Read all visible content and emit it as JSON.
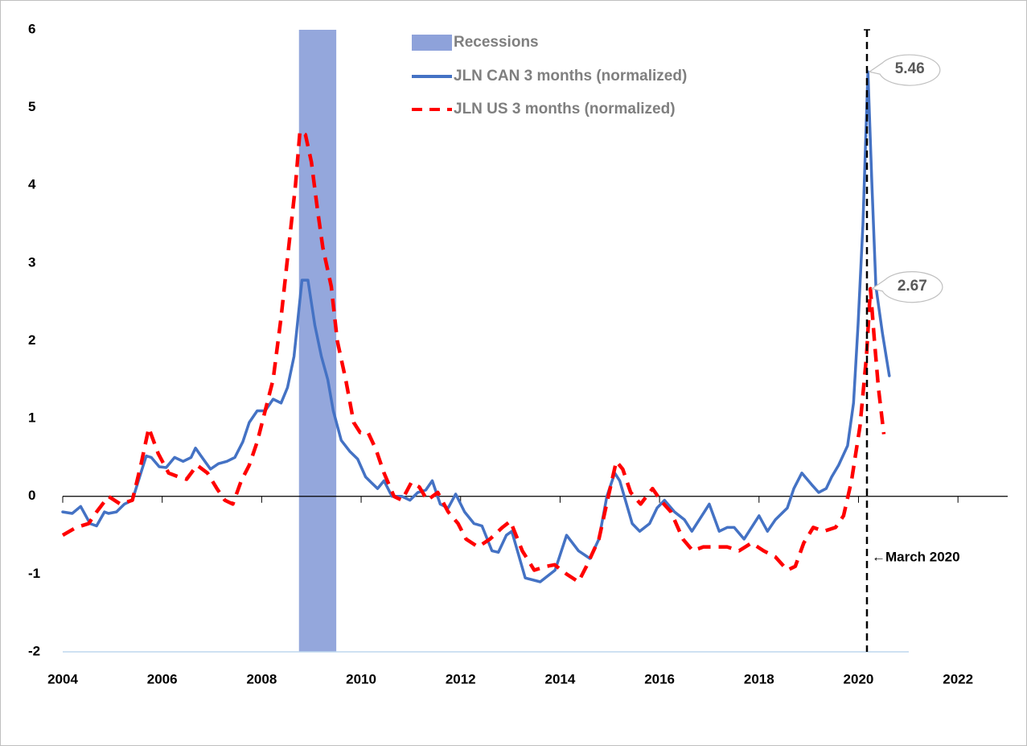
{
  "chart_data": {
    "type": "line",
    "xlim": [
      2004,
      2023
    ],
    "xticks": [
      2004,
      2006,
      2008,
      2010,
      2012,
      2014,
      2016,
      2018,
      2020,
      2022
    ],
    "ylim": [
      -2,
      6
    ],
    "yticks": [
      -2,
      -1,
      0,
      1,
      2,
      3,
      4,
      5,
      6
    ],
    "recessions": {
      "name": "Recessions",
      "color": "#8ea2da",
      "start": 2008.75,
      "end": 2009.5
    },
    "series": [
      {
        "name": "JLN CAN 3 months (normalized)",
        "color": "#4472c4",
        "dash": false,
        "x": [
          2004.0,
          2004.19,
          2004.36,
          2004.55,
          2004.68,
          2004.84,
          2004.92,
          2005.08,
          2005.24,
          2005.4,
          2005.57,
          2005.68,
          2005.78,
          2005.94,
          2006.08,
          2006.25,
          2006.42,
          2006.58,
          2006.67,
          2006.78,
          2006.97,
          2007.13,
          2007.3,
          2007.46,
          2007.62,
          2007.75,
          2007.91,
          2008.07,
          2008.23,
          2008.39,
          2008.52,
          2008.65,
          2008.81,
          2008.93,
          2009.07,
          2009.2,
          2009.33,
          2009.44,
          2009.6,
          2009.77,
          2009.93,
          2010.09,
          2010.2,
          2010.33,
          2010.46,
          2010.62,
          2010.82,
          2010.98,
          2011.14,
          2011.3,
          2011.43,
          2011.59,
          2011.75,
          2011.9,
          2012.08,
          2012.27,
          2012.43,
          2012.63,
          2012.76,
          2012.92,
          2013.03,
          2013.3,
          2013.6,
          2013.9,
          2014.13,
          2014.37,
          2014.6,
          2014.78,
          2014.94,
          2015.1,
          2015.2,
          2015.45,
          2015.6,
          2015.8,
          2015.95,
          2016.1,
          2016.3,
          2016.5,
          2016.65,
          2016.9,
          2017.0,
          2017.2,
          2017.36,
          2017.5,
          2017.7,
          2017.85,
          2018.0,
          2018.17,
          2018.33,
          2018.57,
          2018.7,
          2018.86,
          2019.06,
          2019.2,
          2019.35,
          2019.46,
          2019.6,
          2019.78,
          2019.9,
          2019.99,
          2020.09,
          2020.19,
          2020.27,
          2020.35,
          2020.48,
          2020.62
        ],
        "values": [
          -0.2,
          -0.22,
          -0.13,
          -0.35,
          -0.38,
          -0.2,
          -0.22,
          -0.2,
          -0.1,
          -0.05,
          0.3,
          0.52,
          0.5,
          0.38,
          0.37,
          0.5,
          0.45,
          0.5,
          0.62,
          0.52,
          0.35,
          0.42,
          0.45,
          0.5,
          0.7,
          0.95,
          1.1,
          1.1,
          1.25,
          1.2,
          1.4,
          1.8,
          2.78,
          2.78,
          2.2,
          1.8,
          1.5,
          1.1,
          0.72,
          0.58,
          0.48,
          0.25,
          0.18,
          0.1,
          0.2,
          0.0,
          0.0,
          -0.05,
          0.05,
          0.08,
          0.2,
          -0.1,
          -0.15,
          0.03,
          -0.2,
          -0.35,
          -0.38,
          -0.7,
          -0.72,
          -0.5,
          -0.45,
          -1.05,
          -1.1,
          -0.95,
          -0.5,
          -0.7,
          -0.8,
          -0.55,
          0.0,
          0.3,
          0.2,
          -0.35,
          -0.45,
          -0.35,
          -0.15,
          -0.05,
          -0.2,
          -0.3,
          -0.45,
          -0.2,
          -0.1,
          -0.45,
          -0.4,
          -0.4,
          -0.55,
          -0.4,
          -0.25,
          -0.45,
          -0.3,
          -0.15,
          0.1,
          0.3,
          0.15,
          0.05,
          0.1,
          0.25,
          0.4,
          0.65,
          1.2,
          2.2,
          3.5,
          5.46,
          4.0,
          2.7,
          2.1,
          1.55
        ]
      },
      {
        "name": "JLN US 3 months (normalized)",
        "color": "#ff0000",
        "dash": true,
        "x": [
          2004.0,
          2004.27,
          2004.52,
          2004.68,
          2004.92,
          2005.16,
          2005.4,
          2005.57,
          2005.73,
          2005.92,
          2006.13,
          2006.33,
          2006.49,
          2006.7,
          2006.91,
          2007.1,
          2007.26,
          2007.42,
          2007.59,
          2007.75,
          2007.91,
          2008.07,
          2008.23,
          2008.39,
          2008.56,
          2008.68,
          2008.77,
          2008.88,
          2009.0,
          2009.12,
          2009.23,
          2009.4,
          2009.52,
          2009.69,
          2009.85,
          2009.98,
          2010.14,
          2010.3,
          2010.46,
          2010.66,
          2010.82,
          2011.01,
          2011.17,
          2011.33,
          2011.54,
          2011.75,
          2011.95,
          2012.11,
          2012.35,
          2012.59,
          2012.84,
          2013.0,
          2013.24,
          2013.48,
          2013.73,
          2013.89,
          2014.13,
          2014.37,
          2014.53,
          2014.78,
          2014.97,
          2015.13,
          2015.26,
          2015.42,
          2015.62,
          2015.86,
          2016.02,
          2016.23,
          2016.47,
          2016.67,
          2016.88,
          2017.12,
          2017.36,
          2017.6,
          2017.85,
          2018.09,
          2018.33,
          2018.57,
          2018.73,
          2018.9,
          2019.09,
          2019.3,
          2019.54,
          2019.7,
          2019.86,
          2020.03,
          2020.16,
          2020.24,
          2020.32,
          2020.4,
          2020.51
        ],
        "values": [
          -0.5,
          -0.4,
          -0.35,
          -0.2,
          0.0,
          -0.1,
          -0.05,
          0.4,
          0.88,
          0.55,
          0.3,
          0.25,
          0.22,
          0.4,
          0.3,
          0.1,
          -0.05,
          -0.1,
          0.2,
          0.4,
          0.7,
          1.1,
          1.5,
          2.3,
          3.3,
          4.0,
          4.7,
          4.65,
          4.3,
          3.7,
          3.2,
          2.7,
          2.0,
          1.5,
          0.95,
          0.82,
          0.82,
          0.6,
          0.3,
          0.0,
          -0.05,
          0.18,
          0.12,
          -0.05,
          0.05,
          -0.2,
          -0.35,
          -0.55,
          -0.65,
          -0.55,
          -0.4,
          -0.32,
          -0.7,
          -0.95,
          -0.9,
          -0.88,
          -1.0,
          -1.1,
          -0.9,
          -0.55,
          0.0,
          0.45,
          0.35,
          0.05,
          -0.1,
          0.1,
          -0.05,
          -0.2,
          -0.55,
          -0.7,
          -0.65,
          -0.65,
          -0.65,
          -0.7,
          -0.6,
          -0.7,
          -0.78,
          -0.95,
          -0.9,
          -0.6,
          -0.4,
          -0.45,
          -0.4,
          -0.25,
          0.2,
          0.9,
          1.8,
          2.67,
          2.0,
          1.4,
          0.8
        ]
      }
    ],
    "vline": {
      "x": 2020.17,
      "label": "←March 2020"
    },
    "annotations": [
      {
        "text": "5.46",
        "x": 2020.19,
        "y": 5.46
      },
      {
        "text": "2.67",
        "x": 2020.24,
        "y": 2.67
      }
    ]
  }
}
